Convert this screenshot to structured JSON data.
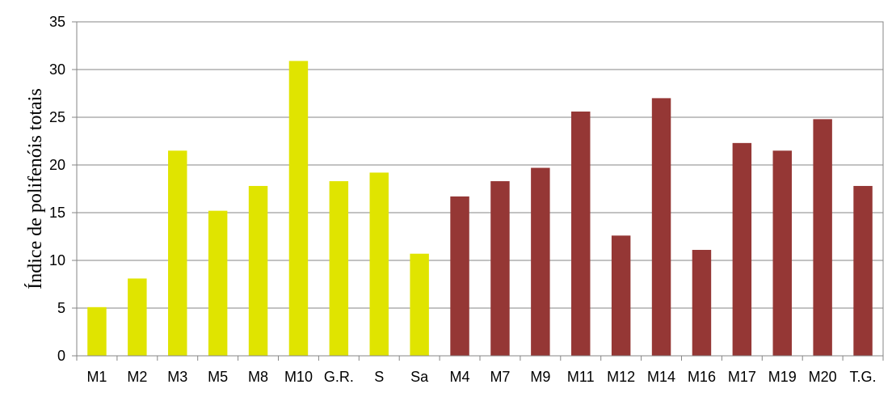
{
  "chart_data": {
    "type": "bar",
    "title": "",
    "xlabel": "",
    "ylabel": "Índice de polifenóis totais",
    "ylim": [
      0,
      35
    ],
    "yticks": [
      0,
      5,
      10,
      15,
      20,
      25,
      30,
      35
    ],
    "grid": "horizontal",
    "legend": "none",
    "categories": [
      "M1",
      "M2",
      "M3",
      "M5",
      "M8",
      "M10",
      "G.R.",
      "S",
      "Sa",
      "M4",
      "M7",
      "M9",
      "M11",
      "M12",
      "M14",
      "M16",
      "M17",
      "M19",
      "M20",
      "T.G."
    ],
    "values": [
      5.1,
      8.1,
      21.5,
      15.2,
      17.8,
      30.9,
      18.3,
      19.2,
      10.7,
      16.7,
      18.3,
      19.7,
      25.6,
      12.6,
      27.0,
      11.1,
      22.3,
      21.5,
      24.8,
      17.8
    ],
    "bar_colors": [
      "#e0e400",
      "#e0e400",
      "#e0e400",
      "#e0e400",
      "#e0e400",
      "#e0e400",
      "#e0e400",
      "#e0e400",
      "#e0e400",
      "#953735",
      "#953735",
      "#953735",
      "#953735",
      "#953735",
      "#953735",
      "#953735",
      "#953735",
      "#953735",
      "#953735",
      "#953735"
    ]
  }
}
